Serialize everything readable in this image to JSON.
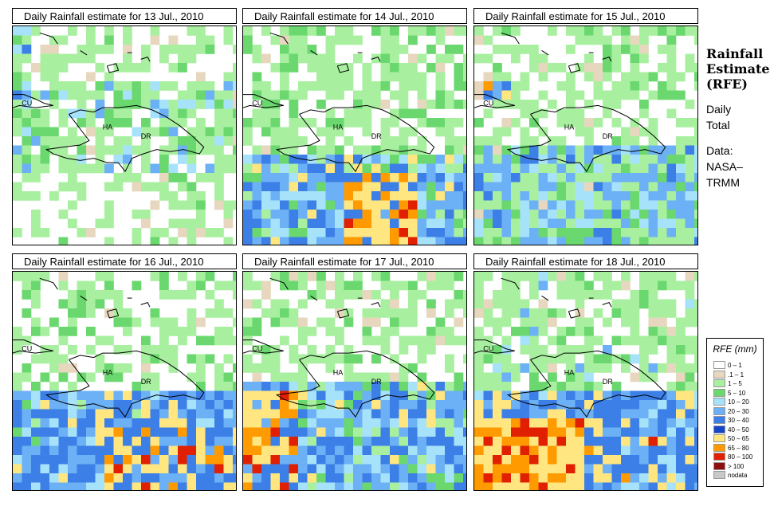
{
  "panels": [
    {
      "title": "Daily Rainfall estimate for  13 Jul., 2010"
    },
    {
      "title": "Daily Rainfall estimate for  14 Jul., 2010"
    },
    {
      "title": "Daily Rainfall estimate for  15 Jul., 2010"
    },
    {
      "title": "Daily Rainfall estimate for  16 Jul., 2010"
    },
    {
      "title": "Daily Rainfall estimate for  17 Jul., 2010"
    },
    {
      "title": "Daily Rainfall estimate for  18 Jul., 2010"
    }
  ],
  "map_labels": {
    "cu": "CU",
    "ha": "HA",
    "dr": "DR"
  },
  "side": {
    "title_line1": "Rainfall",
    "title_line2": "Estimate",
    "title_line3": "(RFE)",
    "text1_line1": "Daily",
    "text1_line2": "Total",
    "text2_line1": "Data:",
    "text2_line2": "NASA–",
    "text2_line3": "TRMM"
  },
  "legend": {
    "title": "RFE (mm)",
    "items": [
      {
        "label": "0 – 1",
        "color": "#ffffff"
      },
      {
        "label": ".1 – 1",
        "color": "#e6d7be"
      },
      {
        "label": "1 – 5",
        "color": "#a8f0a0"
      },
      {
        "label": "5 – 10",
        "color": "#6ad86e"
      },
      {
        "label": "10 – 20",
        "color": "#a6e3fa"
      },
      {
        "label": "20 – 30",
        "color": "#6cb0f5"
      },
      {
        "label": "30 – 40",
        "color": "#3c7fe6"
      },
      {
        "label": "40 – 50",
        "color": "#1546c8"
      },
      {
        "label": "50 – 65",
        "color": "#ffe680"
      },
      {
        "label": "65 – 80",
        "color": "#ff9a00"
      },
      {
        "label": "80 – 100",
        "color": "#e02000"
      },
      {
        "label": "> 100",
        "color": "#8c1010"
      },
      {
        "label": "nodata",
        "color": "#c8c8c8"
      }
    ]
  }
}
